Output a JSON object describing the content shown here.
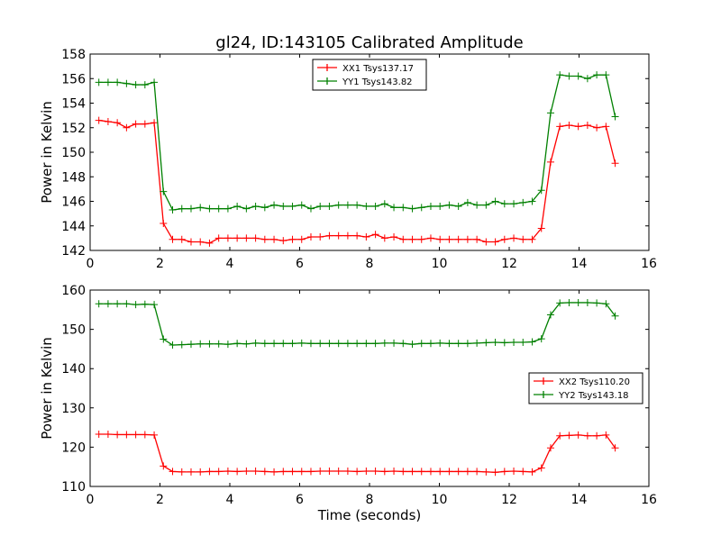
{
  "title": "gl24, ID:143105 Calibrated Amplitude",
  "chart_data": [
    {
      "type": "line",
      "title": "gl24, ID:143105 Calibrated Amplitude",
      "xlabel": "",
      "ylabel": "Power in Kelvin",
      "xlim": [
        0,
        16
      ],
      "ylim": [
        142,
        158
      ],
      "xticks": [
        "0",
        "2",
        "4",
        "6",
        "8",
        "10",
        "12",
        "14",
        "16"
      ],
      "yticks": [
        "142",
        "144",
        "146",
        "148",
        "150",
        "152",
        "154",
        "156",
        "158"
      ],
      "legend_position": "top-center",
      "x_start": 0.25,
      "x_step": 0.264,
      "series": [
        {
          "name": "XX1 Tsys137.17",
          "color": "#ff0000",
          "values": [
            152.6,
            152.5,
            152.4,
            152.0,
            152.3,
            152.3,
            152.4,
            144.2,
            142.9,
            142.9,
            142.7,
            142.7,
            142.6,
            143.0,
            143.0,
            143.0,
            143.0,
            143.0,
            142.9,
            142.9,
            142.8,
            142.9,
            142.9,
            143.1,
            143.1,
            143.2,
            143.2,
            143.2,
            143.2,
            143.1,
            143.3,
            143.0,
            143.1,
            142.9,
            142.9,
            142.9,
            143.0,
            142.9,
            142.9,
            142.9,
            142.9,
            142.9,
            142.7,
            142.7,
            142.9,
            143.0,
            142.9,
            142.9,
            143.8,
            149.2,
            152.1,
            152.2,
            152.1,
            152.2,
            152.0,
            152.1,
            149.1
          ]
        },
        {
          "name": "YY1 Tsys143.82",
          "color": "#008000",
          "values": [
            155.7,
            155.7,
            155.7,
            155.6,
            155.5,
            155.5,
            155.7,
            146.8,
            145.3,
            145.4,
            145.4,
            145.5,
            145.4,
            145.4,
            145.4,
            145.6,
            145.4,
            145.6,
            145.5,
            145.7,
            145.6,
            145.6,
            145.7,
            145.4,
            145.6,
            145.6,
            145.7,
            145.7,
            145.7,
            145.6,
            145.6,
            145.8,
            145.5,
            145.5,
            145.4,
            145.5,
            145.6,
            145.6,
            145.7,
            145.6,
            145.9,
            145.7,
            145.7,
            146.0,
            145.8,
            145.8,
            145.9,
            146.0,
            146.9,
            153.2,
            156.3,
            156.2,
            156.2,
            156.0,
            156.3,
            156.3,
            152.9
          ]
        }
      ]
    },
    {
      "type": "line",
      "xlabel": "Time (seconds)",
      "ylabel": "Power in Kelvin",
      "xlim": [
        0,
        16
      ],
      "ylim": [
        110,
        160
      ],
      "xticks": [
        "0",
        "2",
        "4",
        "6",
        "8",
        "10",
        "12",
        "14",
        "16"
      ],
      "yticks": [
        "110",
        "120",
        "130",
        "140",
        "150",
        "160"
      ],
      "legend_position": "center-right",
      "x_start": 0.25,
      "x_step": 0.264,
      "series": [
        {
          "name": "XX2 Tsys110.20",
          "color": "#ff0000",
          "values": [
            123.3,
            123.3,
            123.2,
            123.2,
            123.2,
            123.2,
            123.1,
            115.2,
            113.8,
            113.7,
            113.7,
            113.7,
            113.8,
            113.8,
            113.9,
            113.8,
            113.9,
            113.9,
            113.8,
            113.7,
            113.8,
            113.8,
            113.8,
            113.8,
            113.9,
            113.9,
            113.9,
            113.9,
            113.8,
            113.9,
            113.9,
            113.8,
            113.9,
            113.8,
            113.8,
            113.8,
            113.8,
            113.8,
            113.8,
            113.8,
            113.8,
            113.8,
            113.7,
            113.6,
            113.8,
            113.9,
            113.8,
            113.7,
            114.7,
            119.8,
            122.9,
            123.0,
            123.1,
            122.9,
            122.9,
            123.1,
            119.8
          ]
        },
        {
          "name": "YY2 Tsys143.18",
          "color": "#008000",
          "values": [
            156.5,
            156.5,
            156.5,
            156.5,
            156.3,
            156.4,
            156.3,
            147.5,
            146.0,
            146.1,
            146.2,
            146.3,
            146.3,
            146.3,
            146.2,
            146.4,
            146.3,
            146.5,
            146.4,
            146.4,
            146.4,
            146.4,
            146.5,
            146.4,
            146.4,
            146.4,
            146.4,
            146.4,
            146.4,
            146.4,
            146.4,
            146.5,
            146.5,
            146.4,
            146.2,
            146.4,
            146.4,
            146.5,
            146.4,
            146.4,
            146.4,
            146.5,
            146.6,
            146.7,
            146.6,
            146.7,
            146.7,
            146.8,
            147.6,
            153.7,
            156.7,
            156.8,
            156.8,
            156.8,
            156.7,
            156.5,
            153.4
          ]
        }
      ]
    }
  ]
}
